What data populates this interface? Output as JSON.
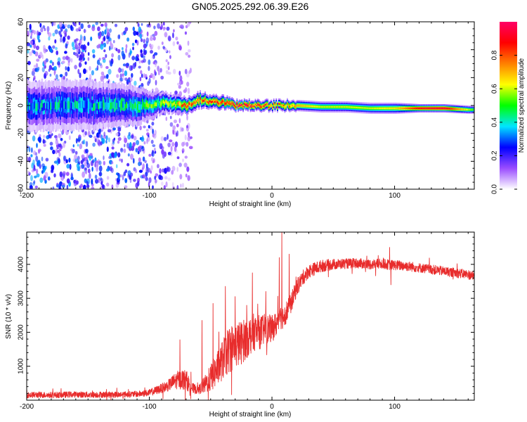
{
  "title": "GN05.2025.292.06.39.E26",
  "chart_data": [
    {
      "type": "heatmap",
      "name": "spectrogram",
      "xlabel": "Height of straight line (km)",
      "ylabel": "Frequency (Hz)",
      "xlim": [
        -200,
        165
      ],
      "ylim": [
        -60,
        60
      ],
      "xticks": [
        -200,
        -100,
        0,
        100
      ],
      "yticks": [
        -60,
        -40,
        -20,
        0,
        20,
        40,
        60
      ],
      "ytick_labels": [
        "-60",
        "-40",
        "-20",
        "0",
        "20",
        "40",
        "60"
      ],
      "colorbar": {
        "label": "Normalized spectral amplitude",
        "range": [
          0,
          1
        ],
        "ticks": [
          0.0,
          0.2,
          0.4,
          0.6,
          0.8
        ],
        "tick_labels": [
          "0.0",
          "0.2",
          "0.4",
          "0.6",
          "0.8"
        ],
        "colormap": [
          "#ffffff",
          "#9a4dff",
          "#0000ff",
          "#00e5ff",
          "#00ff00",
          "#ffff00",
          "#ff8000",
          "#ff0000",
          "#ff0066"
        ]
      },
      "ridge": {
        "x": [
          -200,
          -150,
          -110,
          -100,
          -90,
          -80,
          -70,
          -60,
          -50,
          -40,
          -30,
          -20,
          -10,
          0,
          10,
          20,
          40,
          60,
          80,
          100,
          120,
          140,
          160,
          165
        ],
        "frequency_hz": [
          0,
          0,
          0,
          0,
          2,
          1,
          0,
          4,
          3,
          2,
          0,
          0,
          0,
          0,
          0,
          0,
          -1,
          -1,
          -2,
          -2,
          -2,
          -2,
          -3,
          -3
        ],
        "peak_amplitude": [
          0.35,
          0.35,
          0.45,
          0.5,
          0.55,
          0.6,
          0.8,
          0.75,
          0.8,
          0.85,
          0.9,
          0.9,
          0.85,
          0.7,
          0.75,
          0.7,
          0.6,
          0.6,
          0.6,
          0.65,
          0.9,
          0.95,
          0.6,
          0.5
        ],
        "bandwidth_hz": [
          18,
          18,
          14,
          10,
          8,
          7,
          6,
          6,
          5,
          5,
          4,
          4,
          4,
          4,
          4,
          4,
          4,
          4,
          4,
          4,
          3,
          3,
          3,
          3
        ]
      },
      "noise_region_x": [
        -200,
        -65
      ],
      "noise_amplitude": 0.35
    },
    {
      "type": "line",
      "name": "snr",
      "xlabel": "Height of straight line (km)",
      "ylabel": "SNR (10 * v/v)",
      "xlim": [
        -200,
        165
      ],
      "ylim": [
        0,
        4950
      ],
      "xticks": [
        -200,
        -100,
        0,
        100
      ],
      "yticks": [
        1000,
        2000,
        3000,
        4000
      ],
      "color": "#e82c2c",
      "series": [
        {
          "name": "SNR",
          "x": [
            -200,
            -190,
            -180,
            -170,
            -160,
            -150,
            -140,
            -130,
            -120,
            -110,
            -100,
            -95,
            -90,
            -85,
            -80,
            -75,
            -70,
            -65,
            -60,
            -55,
            -50,
            -45,
            -40,
            -35,
            -30,
            -25,
            -20,
            -15,
            -10,
            -5,
            0,
            5,
            10,
            15,
            20,
            25,
            30,
            40,
            50,
            60,
            70,
            80,
            90,
            97,
            100,
            110,
            120,
            130,
            140,
            150,
            160,
            165
          ],
          "y": [
            150,
            160,
            150,
            160,
            170,
            160,
            165,
            160,
            170,
            180,
            220,
            280,
            350,
            420,
            550,
            620,
            600,
            350,
            300,
            450,
            650,
            900,
            1200,
            1500,
            1600,
            1700,
            1850,
            2000,
            2000,
            2100,
            2100,
            2300,
            2500,
            2800,
            3300,
            3600,
            3800,
            3950,
            4000,
            4020,
            4030,
            4000,
            4020,
            3980,
            3980,
            3950,
            3900,
            3850,
            3800,
            3750,
            3700,
            3650
          ],
          "noise_amp": [
            90,
            90,
            90,
            90,
            90,
            90,
            90,
            90,
            90,
            90,
            100,
            120,
            140,
            160,
            220,
            300,
            300,
            160,
            120,
            250,
            400,
            500,
            600,
            700,
            700,
            650,
            600,
            550,
            500,
            450,
            400,
            350,
            350,
            300,
            250,
            220,
            200,
            180,
            160,
            150,
            150,
            150,
            150,
            150,
            150,
            150,
            140,
            140,
            140,
            140,
            140,
            140
          ],
          "spikes": [
            {
              "x": -75,
              "y": 1780
            },
            {
              "x": -57,
              "y": 2350
            },
            {
              "x": -48,
              "y": 2850
            },
            {
              "x": -38,
              "y": 3350
            },
            {
              "x": -30,
              "y": 3050
            },
            {
              "x": -16,
              "y": 3750
            },
            {
              "x": -5,
              "y": 3200
            },
            {
              "x": 6,
              "y": 4200
            },
            {
              "x": 8,
              "y": 4950
            },
            {
              "x": 14,
              "y": 4300
            },
            {
              "x": 97,
              "y": 3400
            },
            {
              "x": 96,
              "y": 4500
            }
          ]
        }
      ]
    }
  ]
}
